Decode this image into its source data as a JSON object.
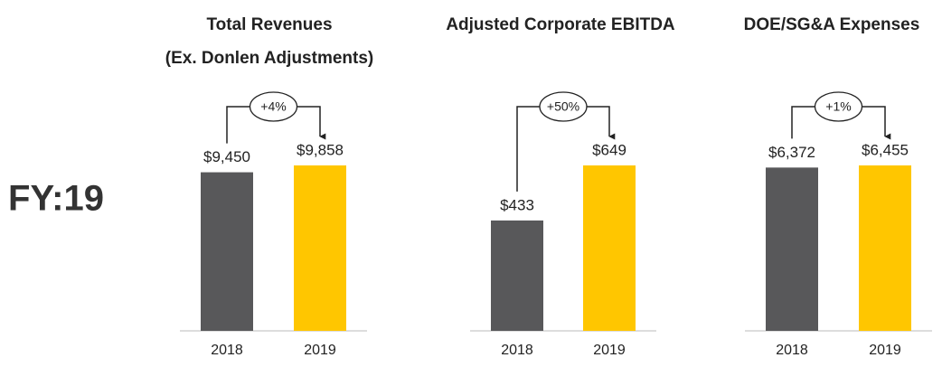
{
  "heading": "FY:19",
  "chart_data": [
    {
      "type": "bar",
      "title": "Total Revenues",
      "subtitle": "(Ex. Donlen Adjustments)",
      "categories": [
        "2018",
        "2019"
      ],
      "values": [
        9450,
        9858
      ],
      "value_labels": [
        "$9,450",
        "$9,858"
      ],
      "colors": [
        "#58585a",
        "#ffc600"
      ],
      "annotation": "+4%"
    },
    {
      "type": "bar",
      "title": "Adjusted Corporate EBITDA",
      "categories": [
        "2018",
        "2019"
      ],
      "values": [
        433,
        649
      ],
      "value_labels": [
        "$433",
        "$649"
      ],
      "colors": [
        "#58585a",
        "#ffc600"
      ],
      "annotation": "+50%"
    },
    {
      "type": "bar",
      "title": "DOE/SG&A Expenses",
      "categories": [
        "2018",
        "2019"
      ],
      "values": [
        6372,
        6455
      ],
      "value_labels": [
        "$6,372",
        "$6,455"
      ],
      "colors": [
        "#58585a",
        "#ffc600"
      ],
      "annotation": "+1%"
    }
  ]
}
